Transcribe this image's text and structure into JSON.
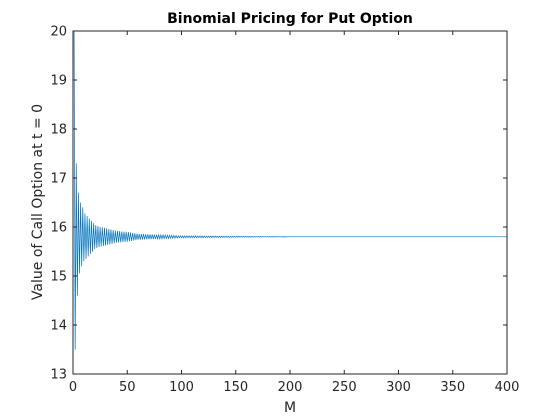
{
  "chart_data": {
    "type": "line",
    "title": "Binomial Pricing for Put Option",
    "xlabel": "M",
    "ylabel": "Value of Call Option at t = 0",
    "xlim": [
      0,
      400
    ],
    "ylim": [
      13,
      20
    ],
    "xticks": [
      0,
      50,
      100,
      150,
      200,
      250,
      300,
      350,
      400
    ],
    "yticks": [
      13,
      14,
      15,
      16,
      17,
      18,
      19,
      20
    ],
    "grid": false,
    "box": true,
    "series": [
      {
        "color": "#0072BD",
        "converged_value": 15.8,
        "x": [
          1,
          2,
          3,
          4,
          5,
          6,
          7,
          8,
          9,
          10,
          12,
          14,
          16,
          18,
          20,
          25,
          30,
          40,
          50,
          60,
          80,
          100,
          150,
          200,
          300,
          400
        ],
        "y": [
          20,
          13.5,
          17.3,
          14.6,
          16.7,
          15.05,
          16.5,
          15.2,
          16.4,
          15.3,
          16.25,
          15.4,
          16.15,
          15.5,
          16.05,
          15.6,
          15.98,
          15.68,
          15.9,
          15.74,
          15.84,
          15.78,
          15.81,
          15.8,
          15.8,
          15.8
        ]
      }
    ]
  }
}
